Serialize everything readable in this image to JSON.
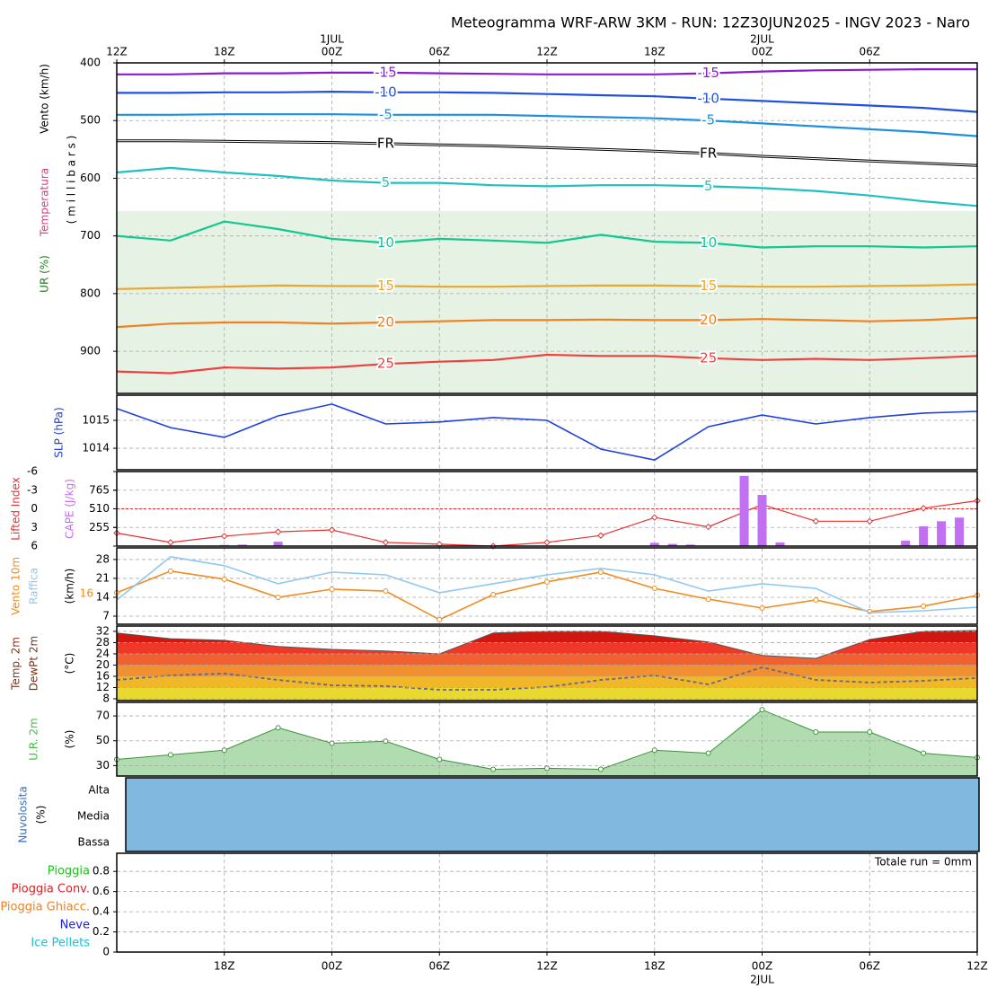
{
  "chart_data": [
    {
      "type": "contour",
      "title": "Meteogramma WRF-ARW 3KM - RUN: 12Z30JUN2025 - INGV 2023 - Naro",
      "ylabels": [
        {
          "text": "Vento (km/h)",
          "color": "#000000"
        },
        {
          "text": "Temperatura",
          "color": "#d04080"
        },
        {
          "text": "UR (%)",
          "color": "#208020"
        }
      ],
      "ylabel": "( m i l l i b a r s )",
      "xlim": [
        0,
        48
      ],
      "xticks": [
        {
          "value": 0,
          "label": "12Z"
        },
        {
          "value": 6,
          "label": "18Z"
        },
        {
          "value": 12,
          "label": "00Z"
        },
        {
          "value": 18,
          "label": "06Z"
        },
        {
          "value": 24,
          "label": "12Z"
        },
        {
          "value": 30,
          "label": "18Z"
        },
        {
          "value": 36,
          "label": "00Z"
        },
        {
          "value": 42,
          "label": "06Z"
        }
      ],
      "date_labels": [
        {
          "value": 12,
          "label": "1JUL"
        },
        {
          "value": 36,
          "label": "2JUL"
        }
      ],
      "ylim": [
        400,
        973
      ],
      "y_inverted": true,
      "yticks": [
        400,
        500,
        600,
        700,
        800,
        900
      ],
      "grid": true,
      "x": [
        0,
        3,
        6,
        9,
        12,
        15,
        18,
        21,
        24,
        27,
        30,
        33,
        36,
        39,
        42,
        45,
        48
      ],
      "series": [
        {
          "name": "-15",
          "color": "#8a1ccc",
          "values": [
            420,
            420,
            418,
            418,
            417,
            417,
            418,
            419,
            420,
            420,
            420,
            418,
            415,
            413,
            412,
            411,
            411
          ]
        },
        {
          "name": "-10",
          "color": "#2050e0",
          "values": [
            452,
            452,
            451,
            451,
            450,
            451,
            451,
            452,
            454,
            456,
            458,
            462,
            466,
            470,
            474,
            478,
            485
          ]
        },
        {
          "name": "-5",
          "color": "#1e90e0",
          "values": [
            490,
            490,
            489,
            489,
            489,
            490,
            490,
            490,
            492,
            494,
            496,
            500,
            505,
            510,
            515,
            520,
            527
          ]
        },
        {
          "name": "FR",
          "color": "#000000",
          "values": [
            535,
            535,
            536,
            537,
            538,
            540,
            542,
            544,
            547,
            550,
            553,
            557,
            562,
            566,
            570,
            574,
            578
          ]
        },
        {
          "name": "5",
          "color": "#20c0c0",
          "values": [
            590,
            582,
            590,
            596,
            604,
            608,
            608,
            612,
            614,
            612,
            612,
            614,
            617,
            622,
            630,
            640,
            648
          ]
        },
        {
          "name": "10",
          "color": "#10c890",
          "values": [
            700,
            708,
            675,
            688,
            705,
            712,
            705,
            708,
            712,
            698,
            710,
            712,
            720,
            718,
            718,
            720,
            718
          ]
        },
        {
          "name": "15",
          "color": "#e8a830",
          "values": [
            792,
            790,
            788,
            786,
            787,
            787,
            788,
            788,
            787,
            786,
            786,
            787,
            788,
            788,
            787,
            786,
            784
          ]
        },
        {
          "name": "20",
          "color": "#f08020",
          "values": [
            858,
            852,
            850,
            850,
            852,
            850,
            848,
            846,
            846,
            845,
            846,
            846,
            844,
            846,
            848,
            846,
            842
          ]
        },
        {
          "name": "25",
          "color": "#f04040",
          "values": [
            935,
            938,
            928,
            930,
            928,
            922,
            918,
            915,
            906,
            908,
            908,
            912,
            915,
            913,
            915,
            912,
            908
          ]
        }
      ]
    },
    {
      "type": "line",
      "ylabels": [
        {
          "text": "SLP (hPa)",
          "color": "#2040e0"
        }
      ],
      "xlim": [
        0,
        48
      ],
      "ylim": [
        1013.23,
        1015.9
      ],
      "yticks": [
        1014,
        1015
      ],
      "grid": true,
      "x": [
        0,
        3,
        6,
        9,
        12,
        15,
        18,
        21,
        24,
        27,
        30,
        33,
        36,
        39,
        42,
        45,
        48
      ],
      "series": [
        {
          "color": "#2040e0",
          "values": [
            1015.42,
            1014.74,
            1014.39,
            1015.16,
            1015.58,
            1014.87,
            1014.94,
            1015.1,
            1015.0,
            1013.97,
            1013.58,
            1014.77,
            1015.19,
            1014.87,
            1015.1,
            1015.26,
            1015.32
          ]
        }
      ]
    },
    {
      "type": "bar_line",
      "xlim": [
        0,
        48
      ],
      "ylim": [
        -6,
        6
      ],
      "y_inverted": true,
      "yticks": [
        -6,
        -3,
        0,
        3,
        6
      ],
      "y2lim": [
        0,
        1020
      ],
      "y2ticks": [
        255,
        510,
        765
      ],
      "grid": true,
      "hline": 0,
      "series": [
        {
          "name": "Lifted Index",
          "color": "#e83030",
          "x": [
            0,
            3,
            6,
            9,
            12,
            15,
            18,
            21,
            24,
            27,
            30,
            33,
            36,
            39,
            42,
            45,
            48
          ],
          "values": [
            3.9,
            5.4,
            4.4,
            3.7,
            3.4,
            5.4,
            5.7,
            6,
            5.4,
            4.3,
            1.4,
            2.9,
            -0.7,
            2,
            2,
            -0.1,
            -1.3
          ]
        },
        {
          "name": "CAPE (J/kg)",
          "color": "#c070f0",
          "axis": "y2",
          "x": [
            6,
            7,
            9,
            30,
            31,
            32,
            35,
            36,
            37,
            44,
            45,
            46,
            47
          ],
          "values": [
            15,
            20,
            60,
            45,
            30,
            20,
            960,
            700,
            50,
            75,
            270,
            340,
            390
          ]
        }
      ]
    },
    {
      "type": "line",
      "ylabels": [
        {
          "text": "Vento 10m",
          "color": "#f08c20"
        },
        {
          "text": "Raffica",
          "color": "#90c8f0"
        },
        {
          "text": "(km/h)",
          "color": "#000000"
        }
      ],
      "xlim": [
        0,
        48
      ],
      "ylim": [
        4,
        32.3
      ],
      "yticks": [
        7,
        14,
        21,
        28
      ],
      "grid": true,
      "current_label": "16",
      "x": [
        0,
        3,
        6,
        9,
        12,
        15,
        18,
        21,
        24,
        27,
        30,
        33,
        36,
        39,
        42,
        45,
        48
      ],
      "series": [
        {
          "name": "Vento 10m",
          "color": "#f08c20",
          "markers": true,
          "values": [
            15.7,
            23.7,
            20.7,
            14,
            17,
            16.3,
            5.7,
            15,
            19.7,
            23.3,
            17.3,
            13.3,
            10,
            13,
            8.7,
            10.7,
            14.7
          ]
        },
        {
          "name": "Raffica",
          "color": "#90c8f0",
          "values": [
            13,
            29,
            25.7,
            19,
            23.3,
            22.3,
            15.7,
            19,
            22.3,
            24.7,
            22.3,
            16.3,
            19,
            17.3,
            8.3,
            9,
            10.3
          ]
        }
      ]
    },
    {
      "type": "area",
      "ylabels": [
        {
          "text": "Temp. 2m",
          "color": "#803018"
        },
        {
          "text": "DewPt 2m",
          "color": "#803018"
        },
        {
          "text": "(°C)",
          "color": "#000000"
        }
      ],
      "xlim": [
        0,
        48
      ],
      "ylim": [
        7.36,
        33.9
      ],
      "yticks": [
        8,
        12,
        16,
        20,
        24,
        28,
        32
      ],
      "grid": true,
      "band_colors": [
        "#e8d830",
        "#f0b828",
        "#f09030",
        "#f06030",
        "#f03828",
        "#d01810",
        "#9a0808"
      ],
      "x": [
        0,
        3,
        6,
        9,
        12,
        15,
        18,
        21,
        24,
        27,
        30,
        33,
        36,
        39,
        42,
        45,
        48
      ],
      "series": [
        {
          "name": "Temp. 2m",
          "color": "#803018",
          "fill": "bands",
          "values": [
            31.4,
            29.4,
            28.8,
            26.6,
            25.6,
            25,
            24,
            31.4,
            32,
            32,
            30.4,
            28.2,
            23.4,
            22.4,
            29.1,
            32,
            32.3
          ]
        },
        {
          "name": "DewPt 2m",
          "color": "#666688",
          "dashed": true,
          "values": [
            14.7,
            16.3,
            17,
            14.7,
            12.8,
            12.5,
            11.2,
            11.2,
            12.2,
            14.7,
            16.3,
            13.1,
            19.2,
            14.7,
            13.8,
            14.4,
            15.4
          ]
        }
      ]
    },
    {
      "type": "area",
      "ylabels": [
        {
          "text": "U.R. 2m",
          "color": "#40c040"
        },
        {
          "text": "(%)",
          "color": "#000000"
        }
      ],
      "xlim": [
        0,
        48
      ],
      "ylim": [
        21.6,
        80.9
      ],
      "yticks": [
        30,
        50,
        70
      ],
      "grid": true,
      "x": [
        0,
        3,
        6,
        9,
        12,
        15,
        18,
        21,
        24,
        27,
        30,
        33,
        36,
        39,
        42,
        45,
        48
      ],
      "series": [
        {
          "name": "U.R. 2m",
          "color": "#70c070",
          "markers": true,
          "values": [
            35,
            38.7,
            42.4,
            60.5,
            48,
            49.6,
            35,
            27,
            27.8,
            27,
            42.4,
            40,
            75,
            57,
            57,
            40,
            36.5
          ]
        }
      ]
    },
    {
      "type": "cloud",
      "ylabels": [
        {
          "text": "Nuvolosita",
          "color": "#3070c0"
        },
        {
          "text": "(%)",
          "color": "#000000"
        }
      ],
      "categories": [
        "Alta",
        "Media",
        "Bassa"
      ],
      "color": "#80b8e0"
    },
    {
      "type": "precip",
      "xlim": [
        0,
        48
      ],
      "ylim": [
        0,
        0.98
      ],
      "yticks": [
        0,
        0.2,
        0.4,
        0.6,
        0.8
      ],
      "grid": true,
      "annotation": "Totale run = 0mm",
      "xticks": [
        {
          "value": 6,
          "label": "18Z"
        },
        {
          "value": 12,
          "label": "00Z"
        },
        {
          "value": 18,
          "label": "06Z"
        },
        {
          "value": 24,
          "label": "12Z"
        },
        {
          "value": 30,
          "label": "18Z"
        },
        {
          "value": 36,
          "label": "00Z"
        },
        {
          "value": 42,
          "label": "06Z"
        },
        {
          "value": 48,
          "label": "12Z"
        }
      ],
      "date_labels": [
        {
          "value": 36,
          "label": "2JUL"
        }
      ],
      "series": [
        {
          "name": "Pioggia",
          "color": "#20c020"
        },
        {
          "name": "Pioggia Conv.",
          "color": "#e02020"
        },
        {
          "name": "Pioggia Ghiacc.",
          "color": "#f08020"
        },
        {
          "name": "Neve",
          "color": "#2020e0"
        },
        {
          "name": "Ice Pellets",
          "color": "#20c0d0"
        }
      ]
    }
  ]
}
